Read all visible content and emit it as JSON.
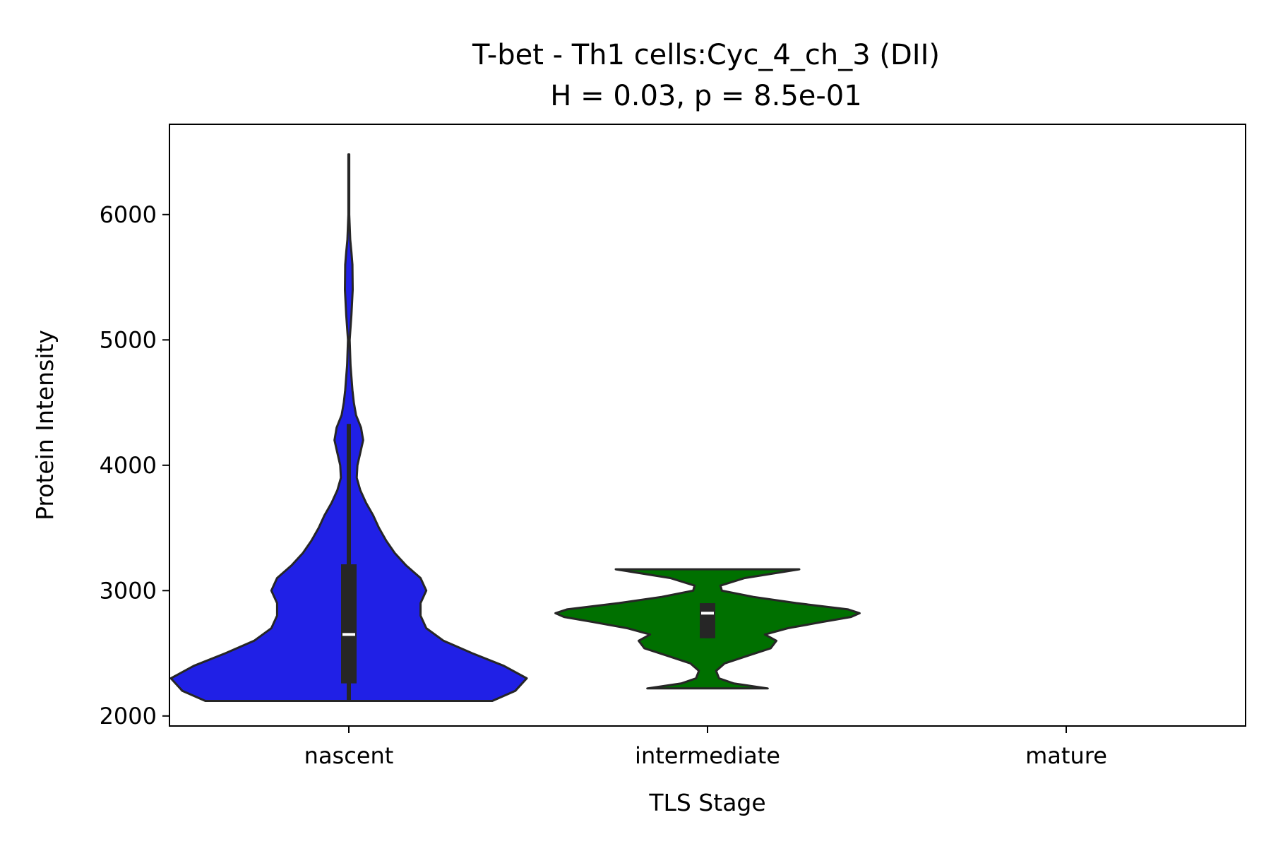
{
  "chart_data": {
    "type": "violin",
    "title": "T-bet - Th1 cells:Cyc_4_ch_3 (DII)",
    "subtitle": "H = 0.03, p = 8.5e-01",
    "xlabel": "TLS Stage",
    "ylabel": "Protein Intensity",
    "ylim": [
      1920,
      6720
    ],
    "y_ticks": [
      2000,
      3000,
      4000,
      5000,
      6000
    ],
    "y_tick_labels": [
      "2000",
      "3000",
      "4000",
      "5000",
      "6000"
    ],
    "categories": [
      "nascent",
      "intermediate",
      "mature"
    ],
    "grid": false,
    "series": [
      {
        "category": "nascent",
        "color": "#2020e6",
        "min": 2120,
        "max": 6480,
        "q1": 2260,
        "median": 2650,
        "q3": 3210,
        "whisker_low": 2120,
        "whisker_high": 4330,
        "density": [
          [
            2120,
            1.0
          ],
          [
            2200,
            1.16
          ],
          [
            2300,
            1.24
          ],
          [
            2400,
            1.08
          ],
          [
            2500,
            0.86
          ],
          [
            2600,
            0.66
          ],
          [
            2700,
            0.54
          ],
          [
            2800,
            0.5
          ],
          [
            2900,
            0.5
          ],
          [
            3000,
            0.54
          ],
          [
            3100,
            0.5
          ],
          [
            3200,
            0.4
          ],
          [
            3300,
            0.32
          ],
          [
            3400,
            0.26
          ],
          [
            3500,
            0.21
          ],
          [
            3600,
            0.17
          ],
          [
            3700,
            0.12
          ],
          [
            3800,
            0.08
          ],
          [
            3900,
            0.055
          ],
          [
            4000,
            0.06
          ],
          [
            4100,
            0.08
          ],
          [
            4200,
            0.1
          ],
          [
            4300,
            0.085
          ],
          [
            4400,
            0.05
          ],
          [
            4500,
            0.035
          ],
          [
            4600,
            0.025
          ],
          [
            4800,
            0.012
          ],
          [
            5000,
            0.006
          ],
          [
            5200,
            0.018
          ],
          [
            5400,
            0.027
          ],
          [
            5600,
            0.025
          ],
          [
            5700,
            0.018
          ],
          [
            5800,
            0.01
          ],
          [
            6000,
            0.003
          ],
          [
            6200,
            0.003
          ],
          [
            6480,
            0.003
          ]
        ]
      },
      {
        "category": "intermediate",
        "color": "#007000",
        "min": 2220,
        "max": 3170,
        "q1": 2620,
        "median": 2820,
        "q3": 2900,
        "whisker_low": 2620,
        "whisker_high": 2900,
        "density": [
          [
            2220,
            0.42
          ],
          [
            2260,
            0.18
          ],
          [
            2300,
            0.08
          ],
          [
            2360,
            0.06
          ],
          [
            2420,
            0.12
          ],
          [
            2480,
            0.28
          ],
          [
            2540,
            0.44
          ],
          [
            2600,
            0.48
          ],
          [
            2650,
            0.4
          ],
          [
            2700,
            0.56
          ],
          [
            2750,
            0.8
          ],
          [
            2790,
            1.0
          ],
          [
            2820,
            1.06
          ],
          [
            2850,
            0.98
          ],
          [
            2900,
            0.62
          ],
          [
            2950,
            0.32
          ],
          [
            3000,
            0.1
          ],
          [
            3040,
            0.09
          ],
          [
            3100,
            0.26
          ],
          [
            3170,
            0.64
          ]
        ]
      },
      {
        "category": "mature",
        "color": "",
        "density": []
      }
    ]
  }
}
